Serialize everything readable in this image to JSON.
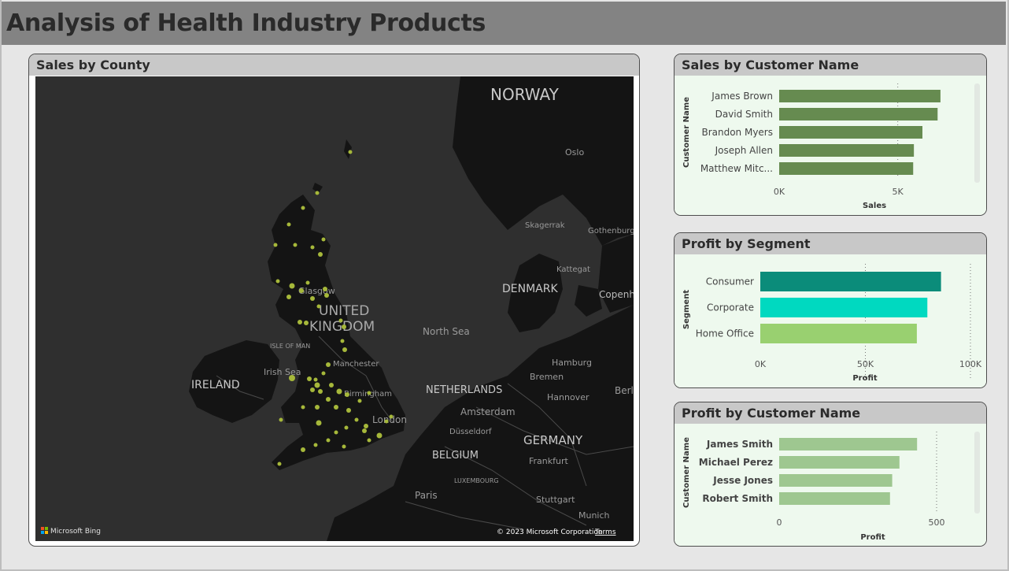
{
  "dashboard_title": "Analysis of Health Industry Products",
  "map_card": {
    "title": "Sales by County",
    "labels": {
      "norway": "NORWAY",
      "oslo": "Oslo",
      "skagerrak": "Skagerrak",
      "gothenburg": "Gothenburg",
      "kattegat": "Kattegat",
      "denmark": "DENMARK",
      "copenhagen": "Copenh",
      "glasgow": "Glasgow",
      "uk1": "UNITED",
      "uk2": "KINGDOM",
      "north_sea": "North Sea",
      "isle_of_man": "ISLE OF MAN",
      "irish_sea": "Irish Sea",
      "ireland": "IRELAND",
      "manchester": "Manchester",
      "hamburg": "Hamburg",
      "bremen": "Bremen",
      "birmingham": "Birmingham",
      "netherlands": "NETHERLANDS",
      "hannover": "Hannover",
      "berlin": "Berl",
      "amsterdam": "Amsterdam",
      "london": "London",
      "dusseldorf": "Düsseldorf",
      "germany": "GERMANY",
      "belgium": "BELGIUM",
      "frankfurt": "Frankfurt",
      "luxembourg": "LUXEMBOURG",
      "paris": "Paris",
      "stuttgart": "Stuttgart",
      "munich": "Munich",
      "bing": "Microsoft Bing",
      "copyright": "© 2023 Microsoft Corporation",
      "terms": "Terms"
    },
    "point_color": "#a6b83a"
  },
  "sales_card": {
    "title": "Sales by Customer Name",
    "chart_data": {
      "type": "bar",
      "orientation": "horizontal",
      "categories": [
        "James Brown",
        "David Smith",
        "Brandon Myers",
        "Joseph Allen",
        "Matthew Mitc..."
      ],
      "values": [
        6800,
        6680,
        6040,
        5680,
        5650
      ],
      "xlabel": "Sales",
      "ylabel": "Customer Name",
      "xticks": [
        "0K",
        "5K"
      ],
      "xlim": [
        0,
        7500
      ],
      "color": "#668b50"
    }
  },
  "profit_segment_card": {
    "title": "Profit by Segment",
    "chart_data": {
      "type": "bar",
      "orientation": "horizontal",
      "categories": [
        "Consumer",
        "Corporate",
        "Home Office"
      ],
      "values": [
        86000,
        79500,
        74500
      ],
      "xlabel": "Profit",
      "ylabel": "Segment",
      "xticks": [
        "0K",
        "50K",
        "100K"
      ],
      "xlim": [
        0,
        100000
      ],
      "colors": [
        "#0b8c7a",
        "#00d9c0",
        "#99d070"
      ]
    }
  },
  "profit_customer_card": {
    "title": "Profit by Customer Name",
    "chart_data": {
      "type": "bar",
      "orientation": "horizontal",
      "categories": [
        "James Smith",
        "Michael Perez",
        "Jesse Jones",
        "Robert Smith"
      ],
      "values": [
        438,
        382,
        359,
        352
      ],
      "xlabel": "Profit",
      "ylabel": "Customer Name",
      "xticks": [
        "0",
        "500"
      ],
      "xlim": [
        0,
        625
      ],
      "color": "#9ec790"
    }
  }
}
